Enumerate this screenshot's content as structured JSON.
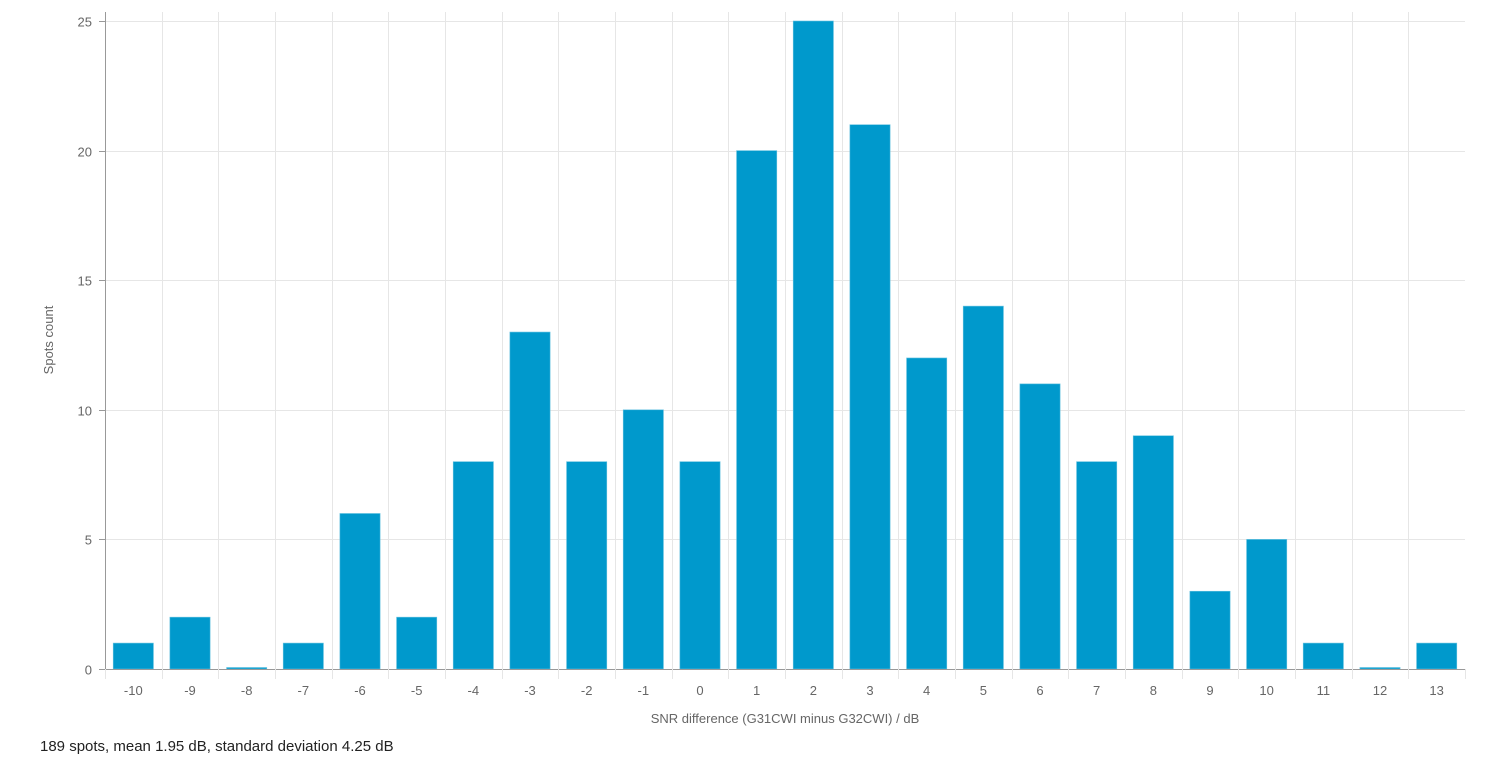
{
  "chart_data": {
    "type": "bar",
    "title": "",
    "xlabel": "SNR difference (G31CWI minus G32CWI) / dB",
    "ylabel": "Spots count",
    "categories": [
      "-10",
      "-9",
      "-8",
      "-7",
      "-6",
      "-5",
      "-4",
      "-3",
      "-2",
      "-1",
      "0",
      "1",
      "2",
      "3",
      "4",
      "5",
      "6",
      "7",
      "8",
      "9",
      "10",
      "11",
      "12",
      "13"
    ],
    "values": [
      1,
      2,
      0,
      1,
      6,
      2,
      8,
      13,
      8,
      10,
      8,
      20,
      25,
      21,
      12,
      14,
      11,
      8,
      9,
      3,
      5,
      1,
      0,
      1
    ],
    "ylim": [
      0,
      25
    ],
    "yticks": [
      0,
      5,
      10,
      15,
      20,
      25
    ],
    "grid": true,
    "legend": null,
    "bar_color": "#0099cc"
  },
  "summary": {
    "text": "189 spots, mean 1.95 dB, standard deviation 4.25 dB"
  },
  "colors": {
    "bar": "#0099cc",
    "grid": "#e6e6e6",
    "axis": "#999999",
    "tick_text": "#666666"
  }
}
